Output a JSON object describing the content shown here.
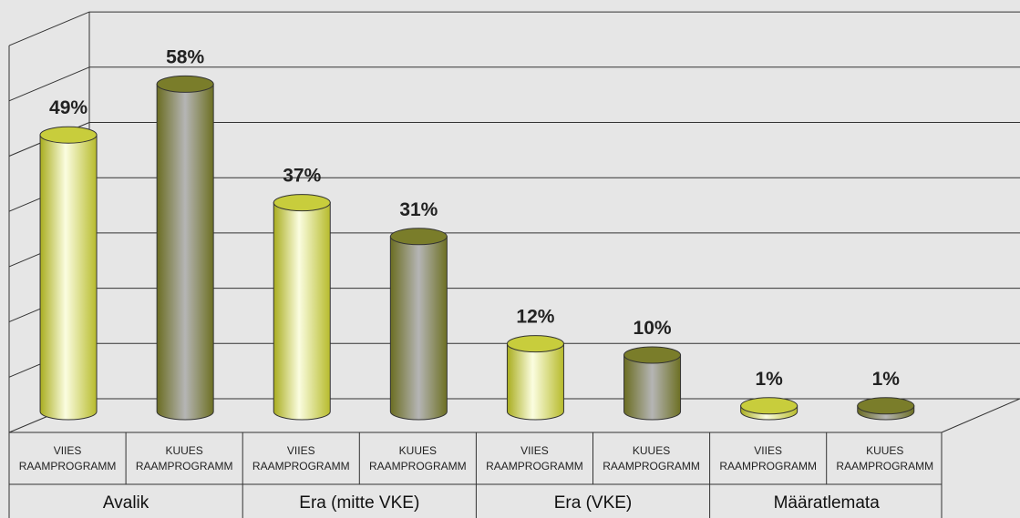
{
  "chart_data": {
    "type": "bar",
    "groups": [
      "Avalik",
      "Era (mitte VKE)",
      "Era (VKE)",
      "Määratlemata"
    ],
    "series": [
      {
        "label_lines": [
          "VIIES",
          "RAAMPROGRAMM"
        ],
        "values": [
          49,
          37,
          12,
          1
        ],
        "value_labels": [
          "49%",
          "37%",
          "12%",
          "1%"
        ],
        "color": "#c8cd3c"
      },
      {
        "label_lines": [
          "KUUES",
          "RAAMPROGRAMM"
        ],
        "values": [
          58,
          31,
          10,
          1
        ],
        "value_labels": [
          "58%",
          "31%",
          "10%",
          "1%"
        ],
        "color": "#7a7d2a"
      }
    ],
    "ylim": [
      0,
      70
    ],
    "grid": true,
    "style": "3d-cylinder"
  }
}
